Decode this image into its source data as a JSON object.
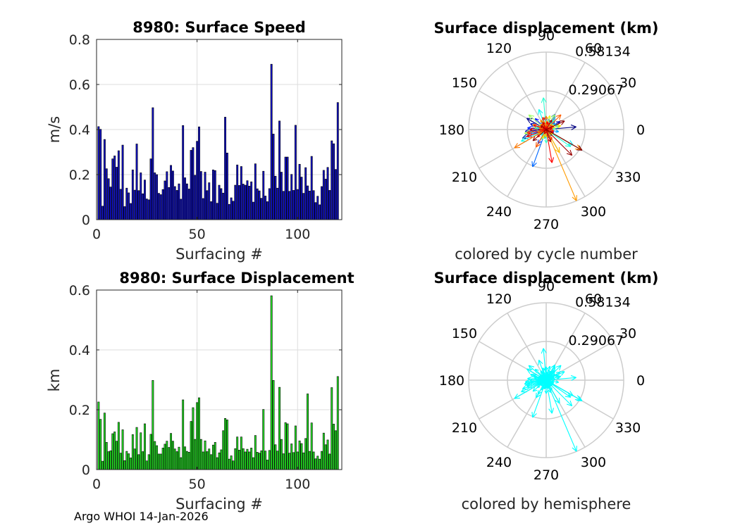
{
  "footer": "Argo WHOI 14-Jan-2026",
  "colors": {
    "speed_bar": "#1010c8",
    "displacement_bar": "#22e022",
    "hemisphere_arrow": "#00ffff",
    "grid": "#dddddd",
    "polar_grid": "#cccccc"
  },
  "chart_data": [
    {
      "id": "speed",
      "type": "bar",
      "title": "8980: Surface Speed",
      "xlabel": "Surfacing #",
      "ylabel": "m/s",
      "xlim": [
        0,
        122
      ],
      "ylim": [
        0,
        0.8
      ],
      "xticks": [
        0,
        50,
        100
      ],
      "yticks": [
        0,
        0.2,
        0.4,
        0.6,
        0.8
      ],
      "ytick_labels": [
        "0",
        "0.2",
        "0.4",
        "0.6",
        "0.8"
      ],
      "values": [
        0.413,
        0.401,
        0.06,
        0.356,
        0.226,
        0.182,
        0.145,
        0.27,
        0.283,
        0.233,
        0.306,
        0.135,
        0.331,
        0.058,
        0.14,
        0.119,
        0.072,
        0.221,
        0.131,
        0.336,
        0.129,
        0.208,
        0.115,
        0.176,
        0.092,
        0.088,
        0.27,
        0.497,
        0.208,
        0.2,
        0.117,
        0.111,
        0.134,
        0.172,
        0.213,
        0.143,
        0.241,
        0.216,
        0.147,
        0.13,
        0.159,
        0.091,
        0.418,
        0.186,
        0.159,
        0.136,
        0.308,
        0.32,
        0.197,
        0.348,
        0.412,
        0.214,
        0.094,
        0.211,
        0.129,
        0.164,
        0.08,
        0.221,
        0.218,
        0.073,
        0.153,
        0.138,
        0.118,
        0.455,
        0.296,
        0.068,
        0.097,
        0.082,
        0.153,
        0.243,
        0.152,
        0.236,
        0.158,
        0.153,
        0.173,
        0.149,
        0.168,
        0.078,
        0.248,
        0.137,
        0.128,
        0.095,
        0.215,
        0.105,
        0.08,
        0.138,
        0.69,
        0.38,
        0.193,
        0.14,
        0.438,
        0.211,
        0.126,
        0.278,
        0.278,
        0.126,
        0.201,
        0.13,
        0.419,
        0.134,
        0.246,
        0.189,
        0.117,
        0.231,
        0.15,
        0.127,
        0.281,
        0.129,
        0.076,
        0.104,
        0.066,
        0.147,
        0.219,
        0.18,
        0.232,
        0.13,
        0.35,
        0.337,
        0.223,
        0.52
      ]
    },
    {
      "id": "displacement",
      "type": "bar",
      "title": "8980: Surface Displacement",
      "xlabel": "Surfacing #",
      "ylabel": "km",
      "xlim": [
        0,
        122
      ],
      "ylim": [
        0,
        0.6
      ],
      "xticks": [
        0,
        50,
        100
      ],
      "yticks": [
        0,
        0.2,
        0.4,
        0.6
      ],
      "ytick_labels": [
        "0",
        "0.2",
        "0.4",
        "0.6"
      ],
      "values": [
        0.226,
        0.168,
        0.028,
        0.189,
        0.091,
        0.06,
        0.063,
        0.12,
        0.126,
        0.095,
        0.158,
        0.055,
        0.133,
        0.03,
        0.061,
        0.053,
        0.039,
        0.117,
        0.069,
        0.141,
        0.05,
        0.123,
        0.06,
        0.153,
        0.029,
        0.05,
        0.118,
        0.298,
        0.094,
        0.08,
        0.052,
        0.052,
        0.072,
        0.085,
        0.095,
        0.074,
        0.121,
        0.095,
        0.069,
        0.06,
        0.075,
        0.04,
        0.233,
        0.076,
        0.061,
        0.058,
        0.161,
        0.207,
        0.101,
        0.224,
        0.24,
        0.101,
        0.059,
        0.096,
        0.06,
        0.069,
        0.05,
        0.082,
        0.091,
        0.04,
        0.056,
        0.066,
        0.13,
        0.171,
        0.166,
        0.035,
        0.046,
        0.029,
        0.07,
        0.109,
        0.065,
        0.109,
        0.07,
        0.059,
        0.068,
        0.059,
        0.072,
        0.04,
        0.114,
        0.058,
        0.055,
        0.063,
        0.201,
        0.062,
        0.032,
        0.064,
        0.581,
        0.298,
        0.083,
        0.062,
        0.275,
        0.101,
        0.053,
        0.157,
        0.153,
        0.055,
        0.086,
        0.057,
        0.146,
        0.059,
        0.096,
        0.087,
        0.056,
        0.104,
        0.253,
        0.061,
        0.156,
        0.059,
        0.036,
        0.045,
        0.035,
        0.061,
        0.122,
        0.083,
        0.099,
        0.052,
        0.274,
        0.152,
        0.13,
        0.311
      ]
    },
    {
      "id": "polar_cycle",
      "type": "polar-quiver",
      "title": "Surface displacement (km)",
      "caption": "colored by cycle number",
      "rlim": [
        0,
        0.58134
      ],
      "rtick_labels": [
        "0.29067",
        "0.58134"
      ],
      "theta_labels": [
        "0",
        "30",
        "60",
        "90",
        "120",
        "150",
        "180",
        "210",
        "240",
        "270",
        "300",
        "330"
      ],
      "colormap": "jet",
      "vectors": [
        [
          0.226,
          5
        ],
        [
          0.168,
          150
        ],
        [
          0.028,
          80
        ],
        [
          0.189,
          200
        ],
        [
          0.091,
          45
        ],
        [
          0.06,
          310
        ],
        [
          0.063,
          250
        ],
        [
          0.12,
          30
        ],
        [
          0.126,
          160
        ],
        [
          0.095,
          95
        ],
        [
          0.158,
          185
        ],
        [
          0.055,
          275
        ],
        [
          0.133,
          60
        ],
        [
          0.03,
          120
        ],
        [
          0.061,
          340
        ],
        [
          0.053,
          220
        ],
        [
          0.039,
          10
        ],
        [
          0.117,
          135
        ],
        [
          0.069,
          290
        ],
        [
          0.141,
          175
        ],
        [
          0.05,
          70
        ],
        [
          0.123,
          240
        ],
        [
          0.06,
          20
        ],
        [
          0.153,
          195
        ],
        [
          0.029,
          100
        ],
        [
          0.05,
          315
        ],
        [
          0.118,
          55
        ],
        [
          0.298,
          250
        ],
        [
          0.094,
          165
        ],
        [
          0.08,
          35
        ],
        [
          0.052,
          285
        ],
        [
          0.052,
          140
        ],
        [
          0.072,
          210
        ],
        [
          0.085,
          75
        ],
        [
          0.095,
          350
        ],
        [
          0.074,
          120
        ],
        [
          0.121,
          190
        ],
        [
          0.095,
          25
        ],
        [
          0.069,
          260
        ],
        [
          0.06,
          155
        ],
        [
          0.075,
          65
        ],
        [
          0.04,
          300
        ],
        [
          0.233,
          330
        ],
        [
          0.076,
          180
        ],
        [
          0.061,
          40
        ],
        [
          0.058,
          230
        ],
        [
          0.161,
          110
        ],
        [
          0.207,
          205
        ],
        [
          0.101,
          15
        ],
        [
          0.224,
          325
        ],
        [
          0.24,
          95
        ],
        [
          0.101,
          270
        ],
        [
          0.059,
          145
        ],
        [
          0.096,
          50
        ],
        [
          0.06,
          200
        ],
        [
          0.069,
          5
        ],
        [
          0.05,
          125
        ],
        [
          0.082,
          245
        ],
        [
          0.091,
          170
        ],
        [
          0.04,
          80
        ],
        [
          0.056,
          305
        ],
        [
          0.066,
          215
        ],
        [
          0.13,
          60
        ],
        [
          0.171,
          140
        ],
        [
          0.166,
          190
        ],
        [
          0.035,
          350
        ],
        [
          0.046,
          100
        ],
        [
          0.029,
          230
        ],
        [
          0.07,
          30
        ],
        [
          0.109,
          160
        ],
        [
          0.065,
          280
        ],
        [
          0.109,
          75
        ],
        [
          0.07,
          200
        ],
        [
          0.059,
          320
        ],
        [
          0.068,
          110
        ],
        [
          0.059,
          45
        ],
        [
          0.072,
          250
        ],
        [
          0.04,
          180
        ],
        [
          0.114,
          15
        ],
        [
          0.058,
          135
        ],
        [
          0.055,
          265
        ],
        [
          0.063,
          85
        ],
        [
          0.201,
          300
        ],
        [
          0.062,
          155
        ],
        [
          0.032,
          40
        ],
        [
          0.064,
          210
        ],
        [
          0.581,
          293
        ],
        [
          0.298,
          330
        ],
        [
          0.083,
          120
        ],
        [
          0.062,
          20
        ],
        [
          0.275,
          210
        ],
        [
          0.101,
          90
        ],
        [
          0.053,
          175
        ],
        [
          0.157,
          45
        ],
        [
          0.153,
          240
        ],
        [
          0.055,
          130
        ],
        [
          0.086,
          300
        ],
        [
          0.057,
          65
        ],
        [
          0.146,
          190
        ],
        [
          0.059,
          350
        ],
        [
          0.096,
          105
        ],
        [
          0.087,
          220
        ],
        [
          0.056,
          30
        ],
        [
          0.104,
          160
        ],
        [
          0.253,
          280
        ],
        [
          0.061,
          80
        ],
        [
          0.156,
          200
        ],
        [
          0.059,
          335
        ],
        [
          0.036,
          140
        ],
        [
          0.045,
          10
        ],
        [
          0.035,
          250
        ],
        [
          0.061,
          115
        ],
        [
          0.122,
          180
        ],
        [
          0.083,
          60
        ],
        [
          0.099,
          290
        ],
        [
          0.052,
          145
        ],
        [
          0.274,
          315
        ],
        [
          0.152,
          25
        ],
        [
          0.13,
          220
        ],
        [
          0.311,
          330
        ]
      ]
    },
    {
      "id": "polar_hemisphere",
      "type": "polar-quiver",
      "title": "Surface displacement (km)",
      "caption": "colored by hemisphere",
      "rlim": [
        0,
        0.58134
      ],
      "rtick_labels": [
        "0.29067",
        "0.58134"
      ],
      "theta_labels": [
        "0",
        "30",
        "60",
        "90",
        "120",
        "150",
        "180",
        "210",
        "240",
        "270",
        "300",
        "330"
      ],
      "color": "#00ffff",
      "vectors_ref": "polar_cycle"
    }
  ]
}
